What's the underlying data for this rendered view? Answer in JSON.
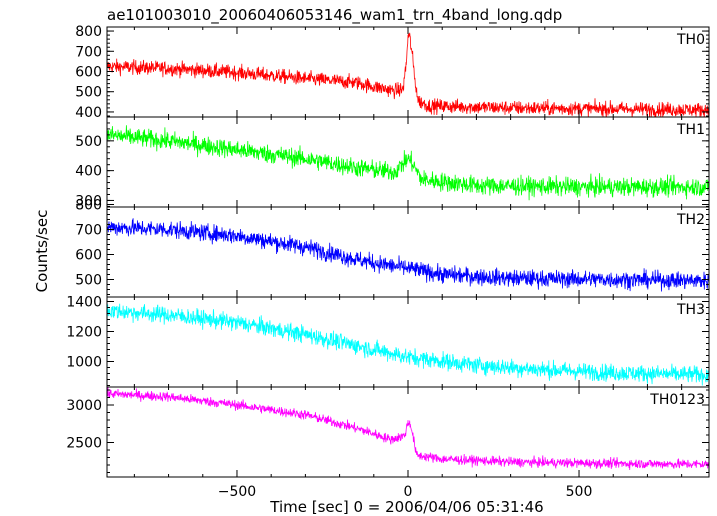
{
  "figure": {
    "title": "ae101003010_20060406053146_wam1_trn_4band_long.qdp",
    "xlabel": "Time [sec] 0 = 2006/04/06 05:31:46",
    "ylabel": "Counts/sec"
  },
  "chart_data": [
    {
      "type": "line",
      "series_label": "TH0",
      "color": "#ff0000",
      "xlim": [
        -880,
        880
      ],
      "ylim": [
        375,
        820
      ],
      "yticks": [
        400,
        500,
        600,
        700,
        800
      ],
      "xticks": [
        -500,
        0,
        500
      ],
      "noise": 25,
      "keypoints": [
        [
          -880,
          625
        ],
        [
          -700,
          615
        ],
        [
          -500,
          595
        ],
        [
          -300,
          565
        ],
        [
          -150,
          545
        ],
        [
          -100,
          525
        ],
        [
          -40,
          505
        ],
        [
          -15,
          510
        ],
        [
          -5,
          640
        ],
        [
          0,
          775
        ],
        [
          5,
          770
        ],
        [
          12,
          690
        ],
        [
          20,
          560
        ],
        [
          30,
          455
        ],
        [
          60,
          430
        ],
        [
          300,
          420
        ],
        [
          600,
          415
        ],
        [
          880,
          410
        ]
      ]
    },
    {
      "type": "line",
      "series_label": "TH1",
      "color": "#00ff00",
      "xlim": [
        -880,
        880
      ],
      "ylim": [
        278,
        580
      ],
      "yticks": [
        300,
        400,
        500
      ],
      "xticks": [
        -500,
        0,
        500
      ],
      "noise": 22,
      "keypoints": [
        [
          -880,
          520
        ],
        [
          -700,
          500
        ],
        [
          -500,
          470
        ],
        [
          -300,
          440
        ],
        [
          -150,
          410
        ],
        [
          -40,
          395
        ],
        [
          0,
          440
        ],
        [
          10,
          430
        ],
        [
          40,
          370
        ],
        [
          200,
          350
        ],
        [
          500,
          345
        ],
        [
          880,
          345
        ]
      ]
    },
    {
      "type": "line",
      "series_label": "TH2",
      "color": "#0000ff",
      "xlim": [
        -880,
        880
      ],
      "ylim": [
        430,
        790
      ],
      "yticks": [
        500,
        600,
        700,
        800
      ],
      "xticks": [
        -500,
        0,
        500
      ],
      "noise": 24,
      "keypoints": [
        [
          -880,
          710
        ],
        [
          -700,
          700
        ],
        [
          -500,
          675
        ],
        [
          -300,
          630
        ],
        [
          -150,
          580
        ],
        [
          -50,
          555
        ],
        [
          0,
          545
        ],
        [
          100,
          520
        ],
        [
          300,
          505
        ],
        [
          600,
          500
        ],
        [
          880,
          495
        ]
      ]
    },
    {
      "type": "line",
      "series_label": "TH3",
      "color": "#00ffff",
      "xlim": [
        -880,
        880
      ],
      "ylim": [
        830,
        1430
      ],
      "yticks": [
        1000,
        1200,
        1400
      ],
      "xticks": [
        -500,
        0,
        500
      ],
      "noise": 40,
      "keypoints": [
        [
          -880,
          1340
        ],
        [
          -700,
          1310
        ],
        [
          -500,
          1260
        ],
        [
          -300,
          1180
        ],
        [
          -100,
          1080
        ],
        [
          0,
          1030
        ],
        [
          200,
          975
        ],
        [
          400,
          945
        ],
        [
          600,
          925
        ],
        [
          880,
          910
        ]
      ]
    },
    {
      "type": "line",
      "series_label": "TH0123",
      "color": "#ff00ff",
      "xlim": [
        -880,
        880
      ],
      "ylim": [
        2040,
        3240
      ],
      "yticks": [
        2500,
        3000
      ],
      "xticks": [
        -500,
        0,
        500
      ],
      "noise": 45,
      "keypoints": [
        [
          -880,
          3150
        ],
        [
          -700,
          3110
        ],
        [
          -500,
          3000
        ],
        [
          -300,
          2870
        ],
        [
          -150,
          2690
        ],
        [
          -50,
          2540
        ],
        [
          -10,
          2590
        ],
        [
          0,
          2770
        ],
        [
          8,
          2740
        ],
        [
          25,
          2330
        ],
        [
          100,
          2280
        ],
        [
          300,
          2240
        ],
        [
          600,
          2220
        ],
        [
          880,
          2210
        ]
      ]
    }
  ]
}
